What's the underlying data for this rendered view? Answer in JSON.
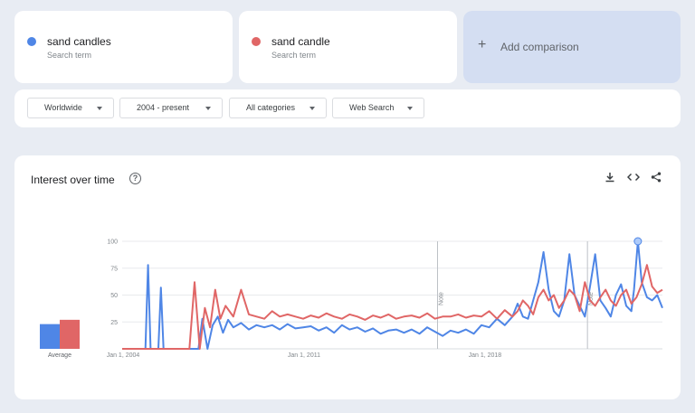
{
  "terms": [
    {
      "name": "sand candles",
      "sub": "Search term",
      "color": "#4f86e6"
    },
    {
      "name": "sand candle",
      "sub": "Search term",
      "color": "#e06666"
    }
  ],
  "add_comparison": {
    "label": "Add comparison",
    "icon": "plus-icon"
  },
  "filters": [
    {
      "label": "Worldwide"
    },
    {
      "label": "2004 - present"
    },
    {
      "label": "All categories"
    },
    {
      "label": "Web Search"
    }
  ],
  "chart_section": {
    "title": "Interest over time",
    "help_icon": "help-circle-icon",
    "tool_icons": [
      "download-icon",
      "embed-code-icon",
      "share-icon"
    ]
  },
  "chart_data": {
    "type": "line",
    "yticks": [
      "100",
      "75",
      "50",
      "25"
    ],
    "ylim": [
      0,
      100
    ],
    "xticks": [
      {
        "label": "Jan 1, 2004",
        "year": 2004
      },
      {
        "label": "Jan 1, 2011",
        "year": 2011
      },
      {
        "label": "Jan 1, 2018",
        "year": 2018
      }
    ],
    "x_range": [
      2004.0,
      2024.9
    ],
    "notes": [
      {
        "label": "Note",
        "year": 2016.2
      },
      {
        "label": "Note",
        "year": 2022.0
      }
    ],
    "average": {
      "label": "Average",
      "values": [
        23,
        27
      ]
    },
    "series": [
      {
        "name": "sand candles",
        "color": "#4f86e6",
        "x": [
          2004.0,
          2004.8,
          2004.9,
          2005.0,
          2005.1,
          2005.2,
          2005.4,
          2005.5,
          2005.6,
          2005.9,
          2006.0,
          2006.3,
          2006.5,
          2006.8,
          2006.95,
          2007.1,
          2007.3,
          2007.5,
          2007.7,
          2007.9,
          2008.1,
          2008.3,
          2008.6,
          2008.9,
          2009.2,
          2009.5,
          2009.8,
          2010.1,
          2010.4,
          2010.7,
          2011.0,
          2011.3,
          2011.6,
          2011.9,
          2012.2,
          2012.5,
          2012.8,
          2013.1,
          2013.4,
          2013.7,
          2014.0,
          2014.3,
          2014.6,
          2014.9,
          2015.2,
          2015.5,
          2015.8,
          2016.1,
          2016.4,
          2016.7,
          2017.0,
          2017.3,
          2017.6,
          2017.9,
          2018.2,
          2018.5,
          2018.8,
          2019.1,
          2019.3,
          2019.5,
          2019.7,
          2019.9,
          2020.1,
          2020.3,
          2020.5,
          2020.7,
          2020.9,
          2021.1,
          2021.3,
          2021.5,
          2021.7,
          2021.9,
          2022.1,
          2022.3,
          2022.5,
          2022.7,
          2022.9,
          2023.1,
          2023.3,
          2023.5,
          2023.7,
          2023.8,
          2023.95,
          2024.1,
          2024.3,
          2024.5,
          2024.7,
          2024.9
        ],
        "y": [
          0,
          0,
          0,
          78,
          0,
          0,
          0,
          57,
          0,
          0,
          0,
          0,
          0,
          0,
          0,
          28,
          0,
          22,
          30,
          15,
          27,
          20,
          24,
          18,
          22,
          20,
          22,
          18,
          23,
          19,
          20,
          21,
          17,
          20,
          15,
          22,
          18,
          20,
          16,
          19,
          14,
          17,
          18,
          15,
          18,
          14,
          20,
          16,
          12,
          17,
          15,
          18,
          14,
          22,
          20,
          28,
          22,
          30,
          42,
          30,
          28,
          45,
          62,
          90,
          55,
          35,
          30,
          45,
          88,
          50,
          40,
          30,
          58,
          88,
          45,
          38,
          30,
          50,
          60,
          40,
          35,
          55,
          100,
          62,
          48,
          45,
          50,
          38
        ]
      },
      {
        "name": "sand candle",
        "color": "#e06666",
        "x": [
          2004.0,
          2004.8,
          2004.9,
          2005.1,
          2005.3,
          2005.5,
          2005.8,
          2006.0,
          2006.2,
          2006.4,
          2006.6,
          2006.8,
          2007.0,
          2007.2,
          2007.4,
          2007.6,
          2007.8,
          2008.0,
          2008.3,
          2008.6,
          2008.9,
          2009.2,
          2009.5,
          2009.8,
          2010.1,
          2010.4,
          2010.7,
          2011.0,
          2011.3,
          2011.6,
          2011.9,
          2012.2,
          2012.5,
          2012.8,
          2013.1,
          2013.4,
          2013.7,
          2014.0,
          2014.3,
          2014.6,
          2014.9,
          2015.2,
          2015.5,
          2015.8,
          2016.1,
          2016.4,
          2016.7,
          2017.0,
          2017.3,
          2017.6,
          2017.9,
          2018.2,
          2018.5,
          2018.8,
          2019.1,
          2019.3,
          2019.5,
          2019.7,
          2019.9,
          2020.1,
          2020.3,
          2020.5,
          2020.7,
          2020.9,
          2021.1,
          2021.3,
          2021.5,
          2021.7,
          2021.9,
          2022.1,
          2022.3,
          2022.5,
          2022.7,
          2022.9,
          2023.1,
          2023.3,
          2023.5,
          2023.7,
          2023.9,
          2024.1,
          2024.3,
          2024.5,
          2024.7,
          2024.9
        ],
        "y": [
          0,
          0,
          0,
          0,
          0,
          0,
          0,
          0,
          0,
          0,
          0,
          62,
          0,
          38,
          20,
          55,
          28,
          40,
          30,
          55,
          32,
          30,
          28,
          35,
          30,
          32,
          30,
          28,
          31,
          29,
          33,
          30,
          28,
          32,
          30,
          27,
          31,
          29,
          32,
          28,
          30,
          31,
          29,
          33,
          28,
          30,
          30,
          32,
          29,
          31,
          30,
          35,
          28,
          36,
          30,
          35,
          45,
          40,
          32,
          48,
          55,
          45,
          50,
          38,
          45,
          55,
          50,
          35,
          62,
          45,
          40,
          48,
          55,
          45,
          40,
          50,
          55,
          42,
          48,
          60,
          78,
          58,
          52,
          55
        ]
      }
    ]
  }
}
